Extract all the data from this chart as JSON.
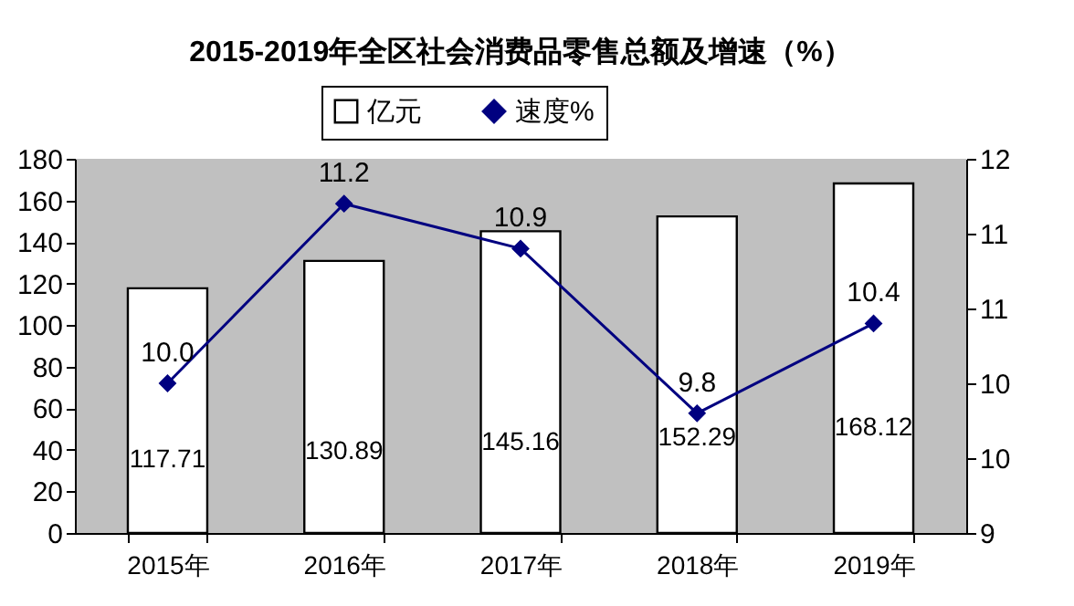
{
  "chart_data": {
    "type": "bar",
    "title": "2015-2019年全区社会消费品零售总额及增速（%）",
    "categories": [
      "2015年",
      "2016年",
      "2017年",
      "2018年",
      "2019年"
    ],
    "series": [
      {
        "name": "亿元",
        "type": "bar",
        "color": "#ffffff",
        "values": [
          117.71,
          130.89,
          145.16,
          152.29,
          168.12
        ]
      },
      {
        "name": "速度%",
        "type": "line",
        "axis": "y2",
        "color": "#000080",
        "values": [
          10.0,
          11.2,
          10.9,
          9.8,
          10.4
        ],
        "value_labels": [
          "10.0",
          "11.2",
          "10.9",
          "9.8",
          "10.4"
        ]
      }
    ],
    "ylim": [
      0,
      180
    ],
    "yticks": [
      0,
      20,
      40,
      60,
      80,
      100,
      120,
      140,
      160,
      180
    ],
    "y2lim": [
      9,
      11.5
    ],
    "y2ticks": [
      9,
      {
        "value": 9.5,
        "label": "10"
      },
      10,
      {
        "value": 10.5,
        "label": "11"
      },
      11,
      {
        "value": 11.5,
        "label": "12"
      }
    ],
    "data_labels": true,
    "grid": false,
    "legend": "top",
    "marker": "diamond",
    "line_style": "solid"
  }
}
